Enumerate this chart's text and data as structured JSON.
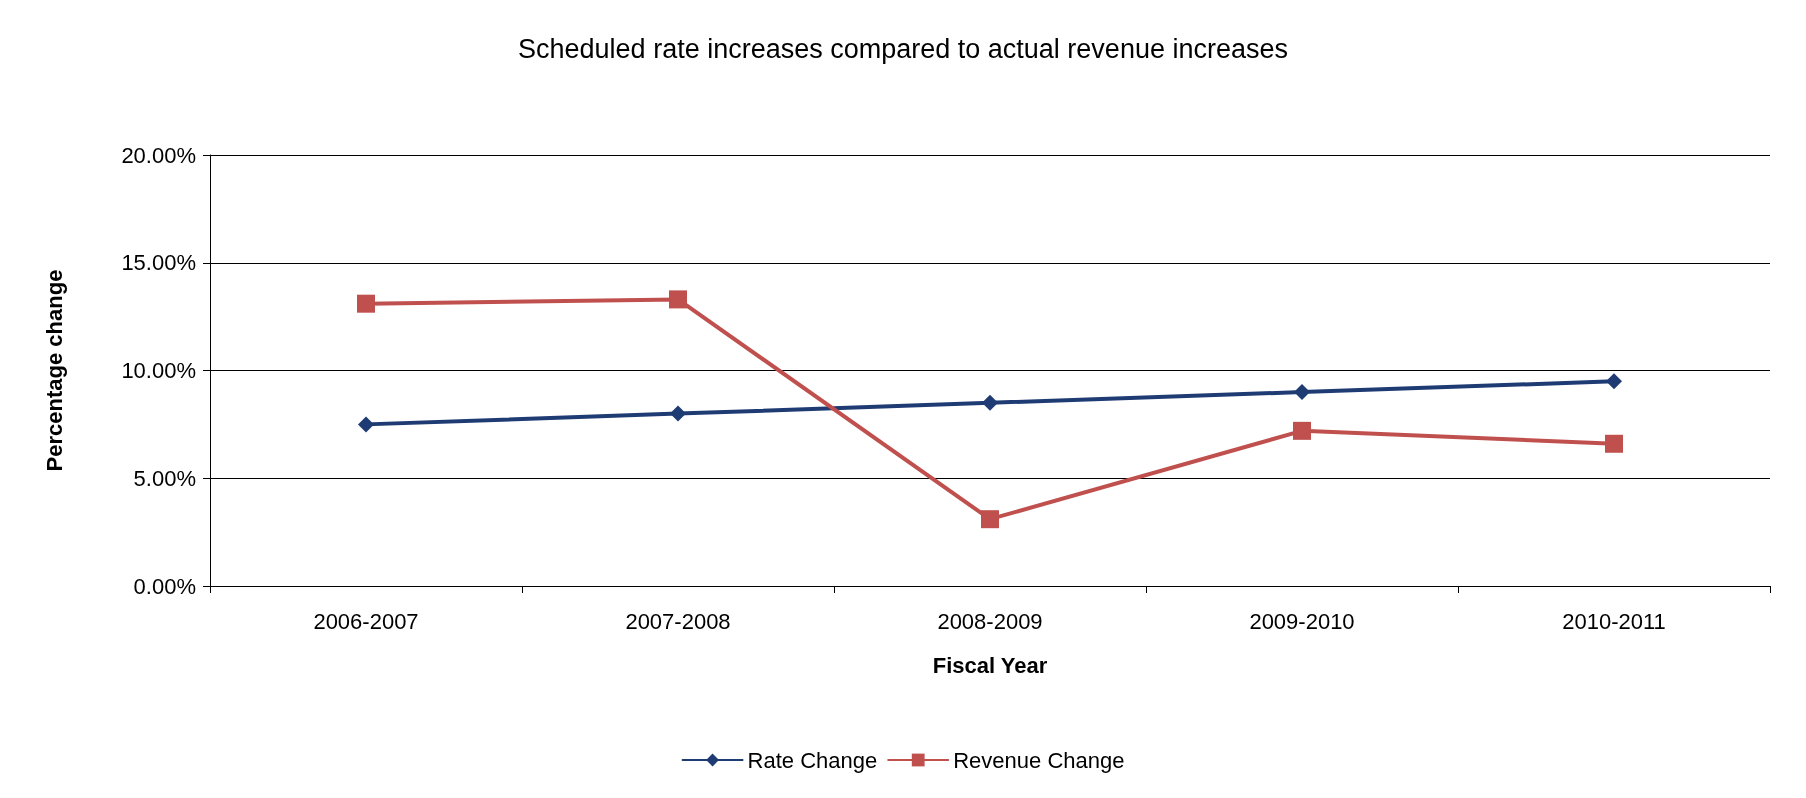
{
  "chart_data": {
    "type": "line",
    "title": "Scheduled rate increases compared to actual revenue increases",
    "xlabel": "Fiscal Year",
    "ylabel": "Percentage change",
    "categories": [
      "2006-2007",
      "2007-2008",
      "2008-2009",
      "2009-2010",
      "2010-2011"
    ],
    "series": [
      {
        "name": "Rate Change",
        "color": "#1f3b73",
        "marker": "diamond",
        "values": [
          7.5,
          8.0,
          8.5,
          9.0,
          9.5
        ]
      },
      {
        "name": "Revenue Change",
        "color": "#c0504d",
        "marker": "square",
        "values": [
          13.1,
          13.3,
          3.1,
          7.2,
          6.6
        ]
      }
    ],
    "ylim": [
      0,
      20
    ],
    "yticks": [
      {
        "value": 0,
        "label": "0.00%"
      },
      {
        "value": 5,
        "label": "5.00%"
      },
      {
        "value": 10,
        "label": "10.00%"
      },
      {
        "value": 15,
        "label": "15.00%"
      },
      {
        "value": 20,
        "label": "20.00%"
      }
    ],
    "grid": "y",
    "legend": "bottom",
    "line_style": "solid"
  }
}
